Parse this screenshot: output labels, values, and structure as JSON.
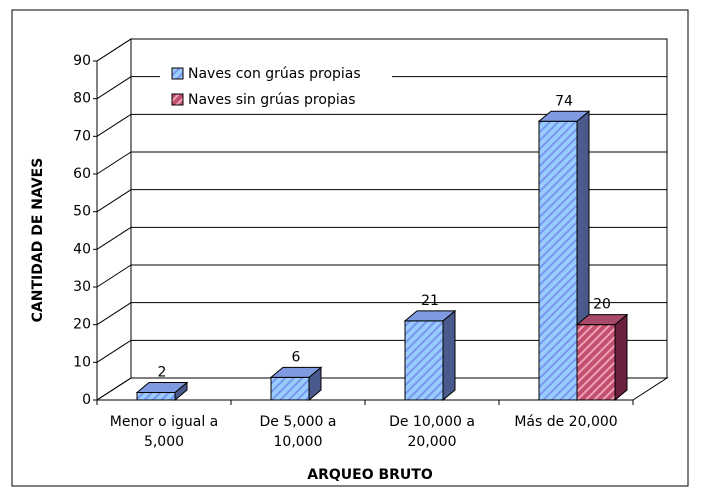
{
  "chart_data": {
    "type": "bar3d",
    "categories": [
      [
        "Menor o igual a",
        "5,000"
      ],
      [
        "De 5,000 a",
        "10,000"
      ],
      [
        "De 10,000 a",
        "20,000"
      ],
      [
        "Más de 20,000"
      ]
    ],
    "series": [
      {
        "name": "Naves con grúas propias",
        "color": "#99ccff",
        "values": [
          2,
          6,
          21,
          74
        ]
      },
      {
        "name": "Naves sin grúas propias",
        "color": "#993366",
        "values": [
          null,
          null,
          null,
          20
        ]
      }
    ],
    "ylim": [
      0,
      90
    ],
    "yticks": [
      0,
      10,
      20,
      30,
      40,
      50,
      60,
      70,
      80,
      90
    ],
    "y_label": "CANTIDAD DE NAVES",
    "x_label": "ARQUEO BRUTO",
    "grid": true,
    "legend": "top-left"
  }
}
